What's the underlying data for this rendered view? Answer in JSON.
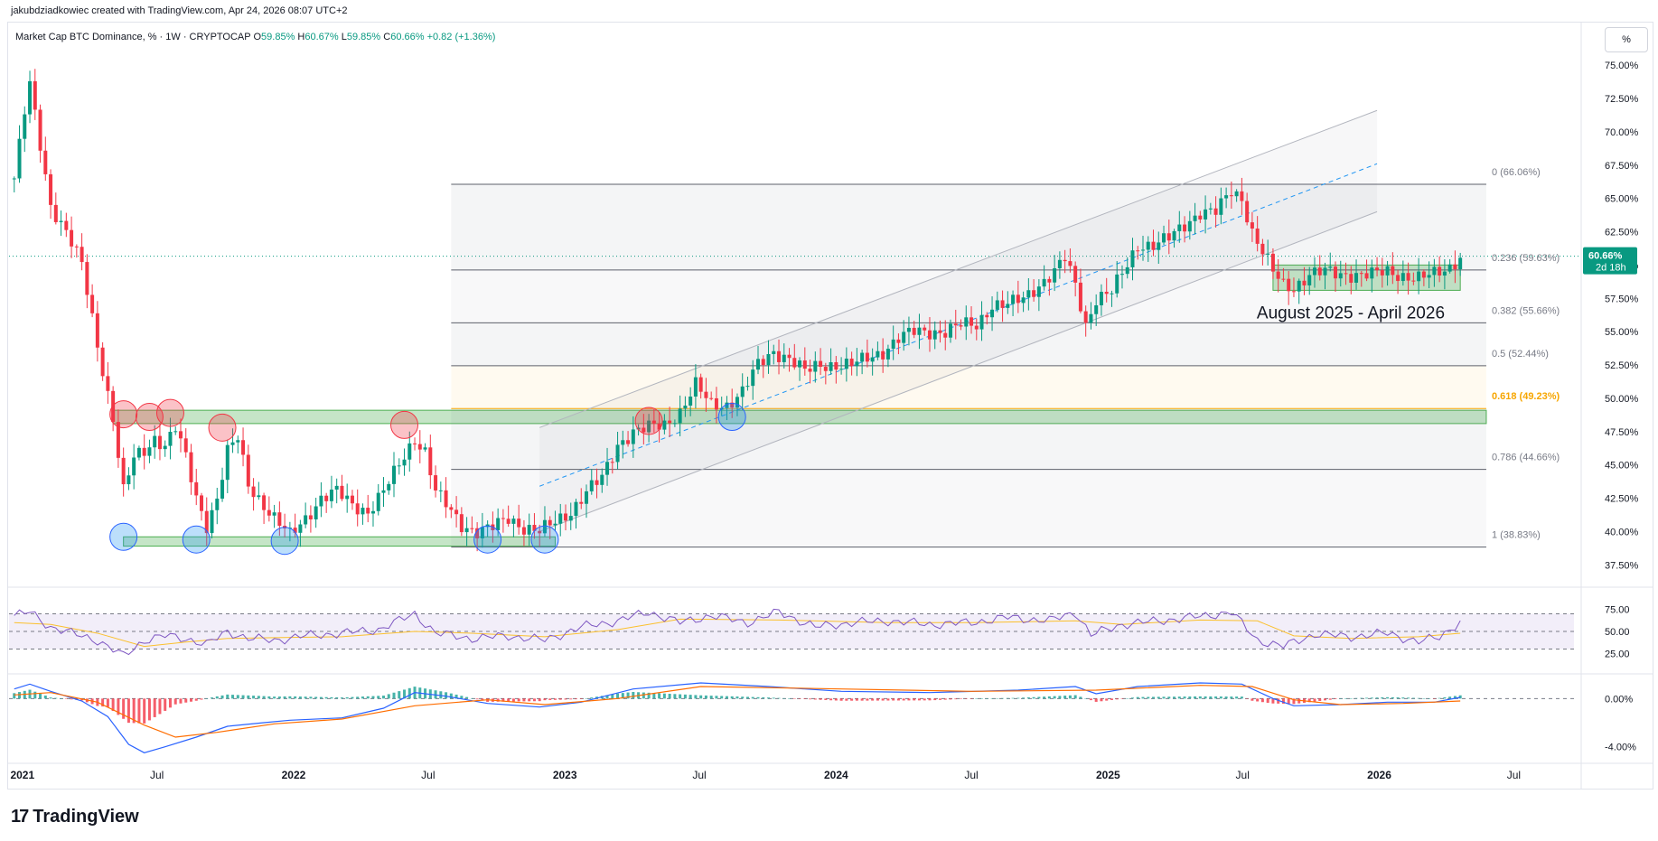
{
  "header": {
    "credit": "jakubdziadkowiec created with TradingView.com, Apr 24, 2026 08:07 UTC+2"
  },
  "symbol": {
    "name": "Market Cap BTC Dominance, % · 1W · CRYPTOCAP",
    "o_label": "O",
    "o_value": "59.85%",
    "h_label": "H",
    "h_value": "60.67%",
    "l_label": "L",
    "l_value": "59.85%",
    "c_label": "C",
    "c_value": "60.66%",
    "change": "+0.82 (+1.36%)"
  },
  "unit_button": "%",
  "logo": {
    "mark": "17",
    "text": "TradingView"
  },
  "colors": {
    "up": "#089981",
    "down": "#f23645",
    "rsi": "#7e57c2",
    "rsi_ma": "#fbc02d",
    "macd": "#2962ff",
    "signal": "#ff6d00",
    "fib_618": "#f7a600",
    "price_tag": "#089981"
  },
  "chart_data": {
    "type": "candlestick",
    "interval": "1W",
    "x_ticks": [
      "2021",
      "Jul",
      "2022",
      "Jul",
      "2023",
      "Jul",
      "2024",
      "Jul",
      "2025",
      "Jul",
      "2026",
      "Jul"
    ],
    "y_ticks": [
      "75.00%",
      "72.50%",
      "70.00%",
      "67.50%",
      "65.00%",
      "62.50%",
      "60.00%",
      "57.50%",
      "55.00%",
      "52.50%",
      "50.00%",
      "47.50%",
      "45.00%",
      "42.50%",
      "40.00%",
      "37.50%"
    ],
    "ylim": [
      36.5,
      76.5
    ],
    "last_price": "60.66%",
    "last_price_countdown": "2d 18h",
    "price_path": [
      [
        "2020-12-21",
        66.5
      ],
      [
        "2021-01-04",
        71.5
      ],
      [
        "2021-01-11",
        73.5
      ],
      [
        "2021-01-25",
        69
      ],
      [
        "2021-02-08",
        64.5
      ],
      [
        "2021-03-01",
        62.5
      ],
      [
        "2021-03-22",
        60
      ],
      [
        "2021-04-12",
        54
      ],
      [
        "2021-05-03",
        48.5
      ],
      [
        "2021-05-17",
        43
      ],
      [
        "2021-05-31",
        45.5
      ],
      [
        "2021-06-14",
        46
      ],
      [
        "2021-06-28",
        47
      ],
      [
        "2021-07-12",
        46.5
      ],
      [
        "2021-07-26",
        47.8
      ],
      [
        "2021-08-09",
        45.5
      ],
      [
        "2021-08-23",
        42.5
      ],
      [
        "2021-09-06",
        40.5
      ],
      [
        "2021-09-20",
        42.5
      ],
      [
        "2021-10-04",
        46
      ],
      [
        "2021-10-18",
        47
      ],
      [
        "2021-11-01",
        43.5
      ],
      [
        "2021-11-22",
        42
      ],
      [
        "2021-12-06",
        41
      ],
      [
        "2021-12-27",
        39.7
      ],
      [
        "2022-01-17",
        41
      ],
      [
        "2022-02-07",
        42.5
      ],
      [
        "2022-02-28",
        43
      ],
      [
        "2022-03-21",
        42
      ],
      [
        "2022-04-11",
        41.5
      ],
      [
        "2022-05-02",
        43
      ],
      [
        "2022-05-23",
        45
      ],
      [
        "2022-06-13",
        47
      ],
      [
        "2022-06-27",
        46
      ],
      [
        "2022-07-11",
        43
      ],
      [
        "2022-07-25",
        42
      ],
      [
        "2022-08-15",
        40.5
      ],
      [
        "2022-09-05",
        40
      ],
      [
        "2022-09-26",
        40.3
      ],
      [
        "2022-10-17",
        41
      ],
      [
        "2022-11-07",
        40.3
      ],
      [
        "2022-11-28",
        40
      ],
      [
        "2022-12-19",
        40.7
      ],
      [
        "2023-01-09",
        41.5
      ],
      [
        "2023-01-30",
        43
      ],
      [
        "2023-02-20",
        44
      ],
      [
        "2023-03-13",
        46.5
      ],
      [
        "2023-04-03",
        47.5
      ],
      [
        "2023-04-24",
        47.8
      ],
      [
        "2023-05-15",
        48
      ],
      [
        "2023-06-05",
        49
      ],
      [
        "2023-06-26",
        51
      ],
      [
        "2023-07-17",
        49.5
      ],
      [
        "2023-08-07",
        49.5
      ],
      [
        "2023-08-28",
        50.5
      ],
      [
        "2023-09-18",
        52.5
      ],
      [
        "2023-10-09",
        53.5
      ],
      [
        "2023-10-30",
        53
      ],
      [
        "2023-11-20",
        52
      ],
      [
        "2023-12-11",
        52.5
      ],
      [
        "2024-01-01",
        52.5
      ],
      [
        "2024-01-22",
        52.5
      ],
      [
        "2024-02-12",
        53
      ],
      [
        "2024-03-04",
        53.5
      ],
      [
        "2024-03-25",
        54.5
      ],
      [
        "2024-04-15",
        55
      ],
      [
        "2024-05-06",
        55
      ],
      [
        "2024-05-27",
        55
      ],
      [
        "2024-06-17",
        55.5
      ],
      [
        "2024-07-08",
        55.5
      ],
      [
        "2024-07-29",
        57
      ],
      [
        "2024-08-19",
        57
      ],
      [
        "2024-09-09",
        57.5
      ],
      [
        "2024-09-30",
        58.5
      ],
      [
        "2024-10-21",
        59.5
      ],
      [
        "2024-11-04",
        60.5
      ],
      [
        "2024-11-18",
        58.5
      ],
      [
        "2024-12-02",
        55.5
      ],
      [
        "2024-12-16",
        57.5
      ],
      [
        "2025-01-06",
        58
      ],
      [
        "2025-01-27",
        60
      ],
      [
        "2025-02-10",
        61.5
      ],
      [
        "2025-03-03",
        61.5
      ],
      [
        "2025-03-24",
        62
      ],
      [
        "2025-04-14",
        63
      ],
      [
        "2025-05-05",
        64
      ],
      [
        "2025-05-26",
        64
      ],
      [
        "2025-06-16",
        65.5
      ],
      [
        "2025-06-30",
        65
      ],
      [
        "2025-07-14",
        62.5
      ],
      [
        "2025-07-28",
        61
      ],
      [
        "2025-08-11",
        59.5
      ],
      [
        "2025-08-25",
        58.5
      ],
      [
        "2025-09-08",
        58.3
      ],
      [
        "2025-09-29",
        59.3
      ],
      [
        "2025-10-20",
        59.5
      ],
      [
        "2025-11-10",
        59.3
      ],
      [
        "2025-12-01",
        59.3
      ],
      [
        "2025-12-22",
        59.3
      ],
      [
        "2026-01-12",
        59.5
      ],
      [
        "2026-02-02",
        59.2
      ],
      [
        "2026-02-23",
        59
      ],
      [
        "2026-03-16",
        59.3
      ],
      [
        "2026-04-06",
        59.85
      ],
      [
        "2026-04-20",
        60.66
      ]
    ],
    "fibonacci": [
      {
        "level": "0",
        "price": 66.06,
        "label": "0 (66.06%)"
      },
      {
        "level": "0.236",
        "price": 59.63,
        "label": "0.236 (59.63%)"
      },
      {
        "level": "0.382",
        "price": 55.66,
        "label": "0.382 (55.66%)"
      },
      {
        "level": "0.5",
        "price": 52.44,
        "label": "0.5 (52.44%)"
      },
      {
        "level": "0.618",
        "price": 49.23,
        "label": "0.618 (49.23%)"
      },
      {
        "level": "0.786",
        "price": 44.66,
        "label": "0.786 (44.66%)"
      },
      {
        "level": "1",
        "price": 38.83,
        "label": "1 (38.83%)"
      }
    ],
    "fib_range": {
      "start": "2022-08-01",
      "end": "2026-05-25"
    },
    "zones": [
      {
        "name": "resistance",
        "from": "2021-05-03",
        "to": "2026-05-25",
        "low": 48.1,
        "high": 49.1
      },
      {
        "name": "support",
        "from": "2021-05-17",
        "to": "2022-12-19",
        "low": 38.9,
        "high": 39.6
      },
      {
        "name": "consolidation",
        "from": "2025-08-11",
        "to": "2026-04-20",
        "low": 58.1,
        "high": 60.0
      }
    ],
    "annotation": "August 2025 - April 2026",
    "channel": {
      "start": "2022-11-28",
      "end": "2025-12-29",
      "upper": [
        47.8,
        71.6
      ],
      "middle": [
        43.4,
        67.6
      ],
      "lower": [
        40.0,
        64.0
      ]
    },
    "resistance_markers": [
      {
        "date": "2021-05-17",
        "price": 48.8
      },
      {
        "date": "2021-06-21",
        "price": 48.6
      },
      {
        "date": "2021-07-19",
        "price": 48.9
      },
      {
        "date": "2021-09-27",
        "price": 47.8
      },
      {
        "date": "2022-05-30",
        "price": 48.0
      },
      {
        "date": "2023-04-24",
        "price": 48.3
      }
    ],
    "support_markers": [
      {
        "date": "2021-05-17",
        "price": 39.6
      },
      {
        "date": "2021-08-23",
        "price": 39.4
      },
      {
        "date": "2021-12-20",
        "price": 39.3
      },
      {
        "date": "2022-09-19",
        "price": 39.4
      },
      {
        "date": "2022-12-05",
        "price": 39.4
      },
      {
        "date": "2023-08-14",
        "price": 48.6
      }
    ],
    "rsi": {
      "y_ticks": [
        "75.00",
        "50.00",
        "25.00"
      ],
      "overbought": 70,
      "oversold": 30,
      "path": [
        [
          "2020-12-21",
          68
        ],
        [
          "2021-01-11",
          72
        ],
        [
          "2021-02-08",
          55
        ],
        [
          "2021-03-08",
          48
        ],
        [
          "2021-04-12",
          40
        ],
        [
          "2021-05-17",
          22
        ],
        [
          "2021-06-14",
          40
        ],
        [
          "2021-07-12",
          45
        ],
        [
          "2021-08-09",
          42
        ],
        [
          "2021-09-06",
          35
        ],
        [
          "2021-10-04",
          50
        ],
        [
          "2021-11-01",
          42
        ],
        [
          "2021-12-06",
          40
        ],
        [
          "2022-01-17",
          45
        ],
        [
          "2022-03-07",
          48
        ],
        [
          "2022-04-25",
          52
        ],
        [
          "2022-06-13",
          70
        ],
        [
          "2022-07-11",
          48
        ],
        [
          "2022-08-29",
          42
        ],
        [
          "2022-10-17",
          45
        ],
        [
          "2022-12-05",
          40
        ],
        [
          "2023-01-23",
          55
        ],
        [
          "2023-03-13",
          62
        ],
        [
          "2023-04-24",
          72
        ],
        [
          "2023-06-05",
          60
        ],
        [
          "2023-07-17",
          68
        ],
        [
          "2023-09-04",
          60
        ],
        [
          "2023-10-16",
          72
        ],
        [
          "2023-12-04",
          55
        ],
        [
          "2024-01-22",
          60
        ],
        [
          "2024-03-11",
          62
        ],
        [
          "2024-05-06",
          58
        ],
        [
          "2024-07-01",
          60
        ],
        [
          "2024-08-19",
          66
        ],
        [
          "2024-10-14",
          62
        ],
        [
          "2024-11-18",
          72
        ],
        [
          "2024-12-09",
          46
        ],
        [
          "2025-01-20",
          58
        ],
        [
          "2025-03-10",
          62
        ],
        [
          "2025-05-05",
          67
        ],
        [
          "2025-06-16",
          72
        ],
        [
          "2025-07-21",
          40
        ],
        [
          "2025-08-25",
          33
        ],
        [
          "2025-10-06",
          47
        ],
        [
          "2025-11-24",
          44
        ],
        [
          "2026-01-12",
          48
        ],
        [
          "2026-02-23",
          38
        ],
        [
          "2026-03-23",
          44
        ],
        [
          "2026-04-20",
          61
        ]
      ],
      "ma_path": [
        [
          "2020-12-21",
          60
        ],
        [
          "2021-02-08",
          58
        ],
        [
          "2021-04-12",
          48
        ],
        [
          "2021-06-14",
          33
        ],
        [
          "2021-08-09",
          38
        ],
        [
          "2021-10-04",
          42
        ],
        [
          "2021-12-06",
          43
        ],
        [
          "2022-03-07",
          44
        ],
        [
          "2022-06-13",
          50
        ],
        [
          "2022-08-29",
          48
        ],
        [
          "2022-12-05",
          44
        ],
        [
          "2023-03-13",
          52
        ],
        [
          "2023-06-05",
          64
        ],
        [
          "2023-10-16",
          63
        ],
        [
          "2024-03-11",
          60
        ],
        [
          "2024-07-01",
          60
        ],
        [
          "2024-11-18",
          62
        ],
        [
          "2025-01-20",
          58
        ],
        [
          "2025-05-05",
          63
        ],
        [
          "2025-07-21",
          62
        ],
        [
          "2025-09-08",
          45
        ],
        [
          "2025-11-24",
          42
        ],
        [
          "2026-02-23",
          44
        ],
        [
          "2026-04-20",
          48
        ]
      ]
    },
    "macd": {
      "y_ticks": [
        "0.00%",
        "-4.00%"
      ],
      "ylim": [
        -5.0,
        1.6
      ],
      "macd_path": [
        [
          "2020-12-21",
          0.8
        ],
        [
          "2021-01-11",
          1.2
        ],
        [
          "2021-02-08",
          0.6
        ],
        [
          "2021-03-22",
          -0.2
        ],
        [
          "2021-04-26",
          -1.5
        ],
        [
          "2021-05-24",
          -3.8
        ],
        [
          "2021-06-14",
          -4.5
        ],
        [
          "2021-07-12",
          -4.0
        ],
        [
          "2021-08-23",
          -3.2
        ],
        [
          "2021-10-04",
          -2.3
        ],
        [
          "2021-11-22",
          -2.0
        ],
        [
          "2021-12-27",
          -1.8
        ],
        [
          "2022-03-07",
          -1.6
        ],
        [
          "2022-05-02",
          -0.8
        ],
        [
          "2022-06-13",
          0.5
        ],
        [
          "2022-07-25",
          0.2
        ],
        [
          "2022-09-19",
          -0.4
        ],
        [
          "2022-11-28",
          -0.7
        ],
        [
          "2023-01-23",
          -0.3
        ],
        [
          "2023-04-03",
          0.8
        ],
        [
          "2023-07-03",
          1.3
        ],
        [
          "2023-10-02",
          1.0
        ],
        [
          "2024-01-08",
          0.6
        ],
        [
          "2024-05-06",
          0.5
        ],
        [
          "2024-09-02",
          0.7
        ],
        [
          "2024-11-18",
          1.0
        ],
        [
          "2024-12-16",
          0.4
        ],
        [
          "2025-02-10",
          1.0
        ],
        [
          "2025-05-05",
          1.3
        ],
        [
          "2025-06-30",
          1.2
        ],
        [
          "2025-08-11",
          0.0
        ],
        [
          "2025-09-08",
          -0.6
        ],
        [
          "2025-11-10",
          -0.5
        ],
        [
          "2026-01-12",
          -0.3
        ],
        [
          "2026-03-16",
          -0.3
        ],
        [
          "2026-04-20",
          0.1
        ]
      ],
      "signal_path": [
        [
          "2020-12-21",
          0.3
        ],
        [
          "2021-02-08",
          0.5
        ],
        [
          "2021-04-12",
          -0.3
        ],
        [
          "2021-06-14",
          -2.2
        ],
        [
          "2021-07-26",
          -3.2
        ],
        [
          "2021-09-20",
          -2.8
        ],
        [
          "2021-12-06",
          -2.1
        ],
        [
          "2022-03-07",
          -1.7
        ],
        [
          "2022-06-13",
          -0.6
        ],
        [
          "2022-09-19",
          -0.1
        ],
        [
          "2022-12-05",
          -0.5
        ],
        [
          "2023-03-13",
          0.0
        ],
        [
          "2023-07-03",
          1.0
        ],
        [
          "2024-01-08",
          0.8
        ],
        [
          "2024-07-01",
          0.6
        ],
        [
          "2024-12-16",
          0.7
        ],
        [
          "2025-05-05",
          1.1
        ],
        [
          "2025-07-14",
          1.0
        ],
        [
          "2025-09-08",
          -0.1
        ],
        [
          "2025-11-10",
          -0.5
        ],
        [
          "2026-02-02",
          -0.4
        ],
        [
          "2026-04-20",
          -0.2
        ]
      ]
    }
  }
}
